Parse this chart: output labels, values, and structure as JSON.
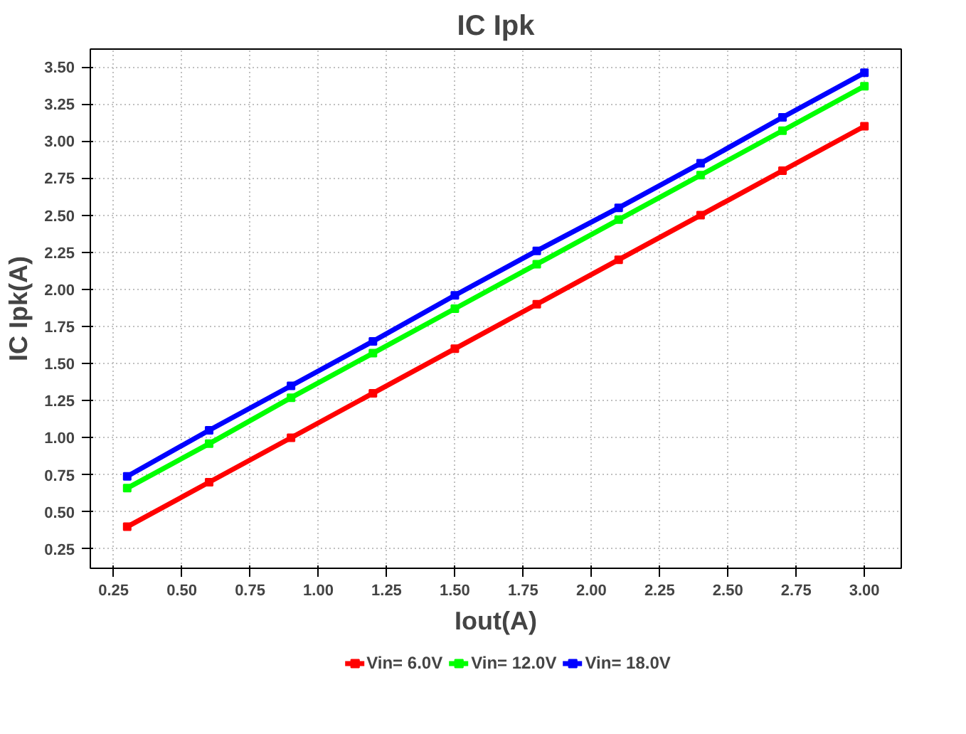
{
  "chart_data": {
    "type": "line",
    "title": "IC Ipk",
    "xlabel": "Iout(A)",
    "ylabel": "IC Ipk(A)",
    "x": [
      0.3,
      0.6,
      0.9,
      1.2,
      1.5,
      1.8,
      2.1,
      2.4,
      2.7,
      3.0
    ],
    "series": [
      {
        "name": "Vin= 6.0V",
        "color": "#ff0000",
        "values": [
          0.4,
          0.7,
          1.0,
          1.3,
          1.6,
          1.9,
          2.2,
          2.5,
          2.8,
          3.1
        ]
      },
      {
        "name": "Vin= 12.0V",
        "color": "#00ff00",
        "values": [
          0.66,
          0.96,
          1.27,
          1.57,
          1.87,
          2.17,
          2.47,
          2.77,
          3.07,
          3.37
        ]
      },
      {
        "name": "Vin= 18.0V",
        "color": "#0000ff",
        "values": [
          0.74,
          1.05,
          1.35,
          1.65,
          1.96,
          2.26,
          2.55,
          2.85,
          3.16,
          3.46
        ]
      }
    ],
    "xlim": [
      0.165,
      3.135
    ],
    "ylim": [
      0.12,
      3.62
    ],
    "xticks": [
      0.25,
      {
        "value": 0.5,
        "label": "0.50"
      },
      0.75,
      {
        "value": 1,
        "label": "1.00"
      },
      1.25,
      {
        "value": 1.5,
        "label": "1.50"
      },
      1.75,
      {
        "value": 2,
        "label": "2.00"
      },
      2.25,
      {
        "value": 2.5,
        "label": "2.50"
      },
      2.75,
      {
        "value": 3,
        "label": "3.00"
      }
    ],
    "yticks": [
      0.25,
      {
        "value": 0.5,
        "label": "0.50"
      },
      0.75,
      {
        "value": 1,
        "label": "1.00"
      },
      1.25,
      {
        "value": 1.5,
        "label": "1.50"
      },
      1.75,
      {
        "value": 2,
        "label": "2.00"
      },
      2.25,
      {
        "value": 2.5,
        "label": "2.50"
      },
      2.75,
      {
        "value": 3,
        "label": "3.00"
      },
      3.25,
      {
        "value": 3.5,
        "label": "3.50"
      }
    ],
    "grid": true,
    "legend": "bottom",
    "marker": "square",
    "line_style": "solid"
  }
}
